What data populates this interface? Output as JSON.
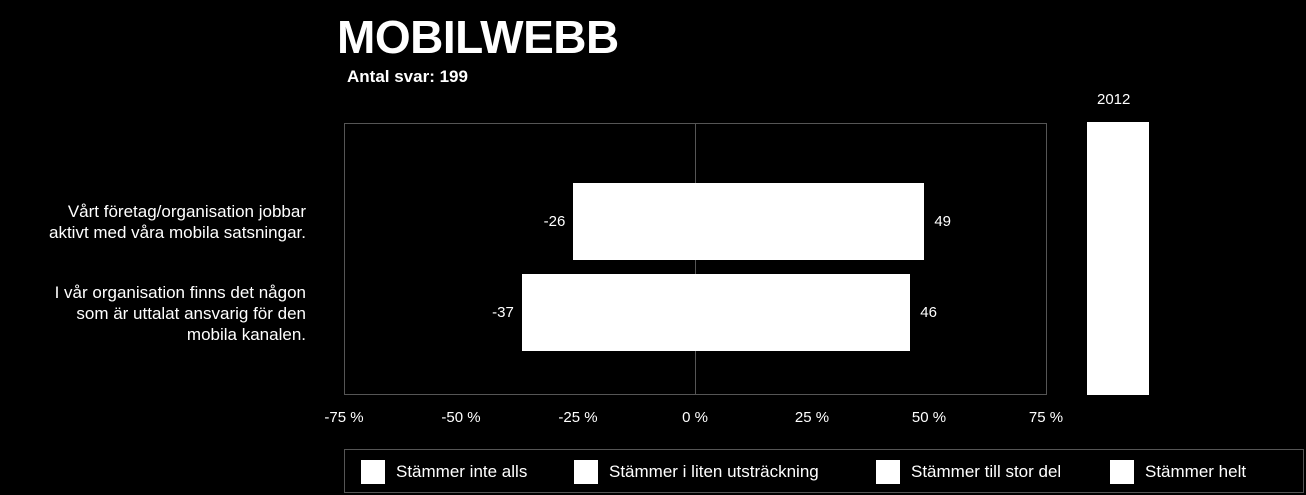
{
  "header": {
    "title": "MOBILWEBB",
    "subtitle": "Antal svar: 199",
    "year_label": "2012"
  },
  "chart_data": {
    "type": "bar",
    "orientation": "horizontal",
    "stacked": "diverging",
    "title": "MOBILWEBB",
    "subtitle": "Antal svar: 199",
    "categories": [
      "Vårt företag/organisation jobbar aktivt med våra mobila satsningar.",
      "I vår organisation finns det någon som är uttalat ansvarig för den mobila kanalen."
    ],
    "category_lines": [
      [
        "Vårt företag/organisation jobbar",
        "aktivt med våra mobila satsningar."
      ],
      [
        "I vår organisation finns det någon",
        "som är uttalat ansvarig för den",
        "mobila kanalen."
      ]
    ],
    "negative_values": [
      -26,
      -37
    ],
    "positive_values": [
      49,
      46
    ],
    "negative_labels": [
      "-26",
      "-37"
    ],
    "positive_labels": [
      "49",
      "46"
    ],
    "xlim": [
      -75,
      75
    ],
    "x_ticks": [
      -75,
      -50,
      -25,
      0,
      25,
      50,
      75
    ],
    "x_tick_labels": [
      "-75 %",
      "-50 %",
      "-25 %",
      "0 %",
      "25 %",
      "50 %",
      "75 %"
    ],
    "legend": [
      "Stämmer inte alls",
      "Stämmer i liten utsträckning",
      "Stämmer till stor del",
      "Stämmer helt"
    ],
    "legend_position": "bottom",
    "grid": false,
    "colors": {
      "background": "#000000",
      "bars": "#ffffff",
      "frame": "#555555",
      "text": "#ffffff"
    }
  }
}
